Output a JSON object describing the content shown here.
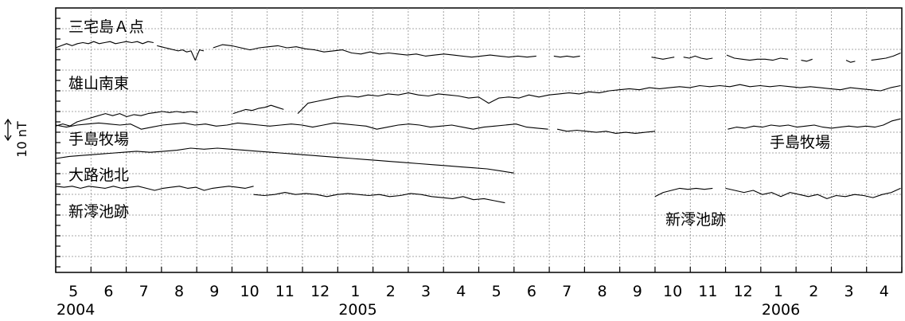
{
  "chart_data": {
    "type": "line",
    "title": "",
    "xlabel": "",
    "ylabel": "",
    "x_ticks": [
      {
        "month": "5",
        "year": "2004"
      },
      {
        "month": "6"
      },
      {
        "month": "7"
      },
      {
        "month": "8"
      },
      {
        "month": "9"
      },
      {
        "month": "10"
      },
      {
        "month": "11"
      },
      {
        "month": "12"
      },
      {
        "month": "1",
        "year": "2005"
      },
      {
        "month": "2"
      },
      {
        "month": "3"
      },
      {
        "month": "4"
      },
      {
        "month": "5"
      },
      {
        "month": "6"
      },
      {
        "month": "7"
      },
      {
        "month": "8"
      },
      {
        "month": "9"
      },
      {
        "month": "10"
      },
      {
        "month": "11"
      },
      {
        "month": "12"
      },
      {
        "month": "1",
        "year": "2006"
      },
      {
        "month": "2"
      },
      {
        "month": "3"
      },
      {
        "month": "4"
      }
    ],
    "x_range": [
      "2004-05-01",
      "2006-04-30"
    ],
    "scale_bar": {
      "label": "10 nT",
      "value": 10,
      "unit": "nT"
    },
    "grid": true,
    "series": [
      {
        "name": "三宅島Ａ点",
        "label_positions": [
          "upper-left"
        ],
        "segments": [
          {
            "start": "2004-05-01",
            "end": "2004-07-25",
            "values": [
              0,
              1,
              2,
              1,
              2,
              2.5,
              2,
              3,
              2,
              2.5,
              3,
              2,
              2.5,
              3,
              2.5,
              3,
              2,
              3,
              2.5
            ]
          },
          {
            "start": "2004-07-28",
            "end": "2004-09-07",
            "values": [
              1,
              0.5,
              0,
              -0.5,
              -1,
              -1.5,
              -1,
              -2,
              -1.5,
              -6,
              -1,
              -1.5
            ]
          },
          {
            "start": "2004-09-15",
            "end": "2005-06-20",
            "values": [
              0,
              1.5,
              1,
              0,
              -1,
              0,
              0.5,
              1,
              0,
              0.5,
              -0.5,
              -1,
              -2,
              -1.5,
              -1,
              -2.5,
              -3,
              -2,
              -3,
              -2.5,
              -3,
              -3.5,
              -3,
              -4,
              -3.5,
              -3,
              -3.5,
              -4,
              -4.5,
              -4,
              -3.5,
              -4,
              -4.5,
              -4,
              -4.5,
              -4
            ]
          },
          {
            "start": "2005-07-05",
            "end": "2005-07-28",
            "values": [
              -4,
              -4.5,
              -4,
              -4.5,
              -4
            ]
          },
          {
            "start": "2005-09-28",
            "end": "2005-10-18",
            "values": [
              -4.5,
              -5,
              -5.5,
              -5,
              -4.5
            ]
          },
          {
            "start": "2005-10-26",
            "end": "2005-11-20",
            "values": [
              -4.5,
              -5,
              -4,
              -5,
              -5.5,
              -5
            ]
          },
          {
            "start": "2005-12-02",
            "end": "2006-01-25",
            "values": [
              -3.5,
              -5,
              -5.5,
              -6,
              -5.5,
              -5.5,
              -6,
              -5,
              -5.5
            ]
          },
          {
            "start": "2006-02-05",
            "end": "2006-02-14",
            "values": [
              -6,
              -6.5,
              -5.5
            ]
          },
          {
            "start": "2006-03-14",
            "end": "2006-03-22",
            "values": [
              -6,
              -7,
              -6.5
            ]
          },
          {
            "start": "2006-04-05",
            "end": "2006-04-30",
            "values": [
              -6,
              -5.5,
              -5,
              -4,
              -2.5
            ]
          }
        ]
      },
      {
        "name": "雄山南東",
        "label_positions": [
          "upper-left"
        ],
        "segments": [
          {
            "start": "2004-05-01",
            "end": "2004-09-02",
            "values": [
              -12,
              -11,
              -12,
              -10,
              -9,
              -8,
              -7,
              -6,
              -7,
              -6,
              -7.5,
              -6.5,
              -7,
              -6,
              -5.5,
              -5,
              -5.5,
              -5,
              -5.5,
              -5,
              -5.5
            ]
          },
          {
            "start": "2004-10-02",
            "end": "2004-11-15",
            "values": [
              -6,
              -5,
              -4,
              -4.5,
              -3.5,
              -3,
              -2,
              -3,
              -4
            ]
          },
          {
            "start": "2004-11-27",
            "end": "2006-04-30",
            "values": [
              -6,
              -1,
              0,
              1,
              2,
              2.5,
              2,
              3,
              2.5,
              3.5,
              3,
              4,
              3,
              2.5,
              3.5,
              3,
              2.5,
              1.5,
              2,
              -1,
              1.5,
              2,
              1.5,
              3,
              2,
              3,
              3.5,
              4,
              3.5,
              4.5,
              4,
              5,
              5.5,
              6,
              5.5,
              6.5,
              6,
              6.5,
              7,
              6.5,
              7.5,
              7,
              7.5,
              7,
              8,
              7,
              7.5,
              7,
              7.5,
              7,
              6.5,
              7,
              6.5,
              6,
              5.5,
              6.5,
              6,
              5.5,
              5,
              6.5,
              7.5
            ]
          }
        ]
      },
      {
        "name": "手島牧場",
        "label_positions": [
          "upper-left",
          "upper-right"
        ],
        "segments": [
          {
            "start": "2004-05-01",
            "end": "2005-06-30",
            "values": [
              0,
              -1,
              0,
              0.5,
              1,
              0.5,
              0,
              0.5,
              -2,
              -1,
              0,
              0.5,
              1,
              0,
              0.5,
              -0.5,
              0,
              1,
              0.5,
              0,
              -0.5,
              0,
              0.5,
              0,
              -1,
              0,
              1,
              0.5,
              0,
              -0.5,
              -2,
              -1,
              0,
              0.5,
              0,
              -1,
              -0.5,
              0,
              -1,
              -2,
              -1,
              -0.5,
              0,
              0.5,
              -1,
              -1.5,
              -2
            ]
          },
          {
            "start": "2005-07-08",
            "end": "2005-10-01",
            "values": [
              -2,
              -3,
              -2.5,
              -3,
              -3.5,
              -3,
              -4,
              -3.5,
              -4,
              -3.5,
              -3
            ]
          },
          {
            "start": "2005-12-03",
            "end": "2006-04-30",
            "values": [
              -2,
              -1,
              -1.5,
              -0.5,
              -1,
              0,
              -0.5,
              0,
              -1,
              -0.5,
              0,
              -1,
              -1.5,
              -1,
              -0.5,
              -1,
              -0.5,
              -1,
              0,
              2,
              3
            ]
          }
        ]
      },
      {
        "name": "大路池北",
        "label_positions": [
          "upper-left"
        ],
        "segments": [
          {
            "start": "2004-05-01",
            "end": "2005-06-01",
            "values": [
              0,
              1,
              1.5,
              2,
              2.5,
              3,
              3.5,
              3,
              3.5,
              4,
              5,
              4.5,
              5,
              4.5,
              4,
              3.5,
              3,
              2.5,
              2,
              1.5,
              1,
              0.5,
              0,
              -0.5,
              -1,
              -1.5,
              -2,
              -2.5,
              -3,
              -3.5,
              -4,
              -4.5,
              -5,
              -6,
              -7
            ]
          }
        ]
      },
      {
        "name": "新澪池跡",
        "label_positions": [
          "upper-left",
          "lower-right"
        ],
        "segments": [
          {
            "start": "2004-05-01",
            "end": "2004-10-20",
            "values": [
              2,
              1.5,
              2,
              1,
              2,
              1.5,
              1,
              2,
              1,
              1.5,
              2,
              1,
              0,
              1,
              1.5,
              2,
              1,
              1.5,
              0,
              1,
              1.5,
              2,
              1.5,
              1,
              2
            ]
          },
          {
            "start": "2004-10-20",
            "end": "2005-05-24",
            "values": [
              -2,
              -2.5,
              -2,
              -1,
              -2,
              -1.5,
              -2,
              -3,
              -2,
              -1.5,
              -2,
              -2.5,
              -2,
              -3,
              -2.5,
              -1.5,
              -2,
              -3,
              -3.5,
              -4,
              -3,
              -4.5,
              -4,
              -5,
              -6
            ]
          },
          {
            "start": "2005-10-01",
            "end": "2005-11-20",
            "values": [
              -3,
              -1,
              0,
              1,
              0.5,
              1,
              0.5,
              1
            ]
          },
          {
            "start": "2005-12-01",
            "end": "2006-04-30",
            "values": [
              1,
              0,
              -1,
              0,
              -2,
              -1,
              -3,
              -1,
              -2,
              -3,
              -2,
              -4,
              -2.5,
              -3,
              -2,
              -2.5,
              -3.5,
              -2,
              -1,
              1
            ]
          }
        ]
      }
    ]
  }
}
